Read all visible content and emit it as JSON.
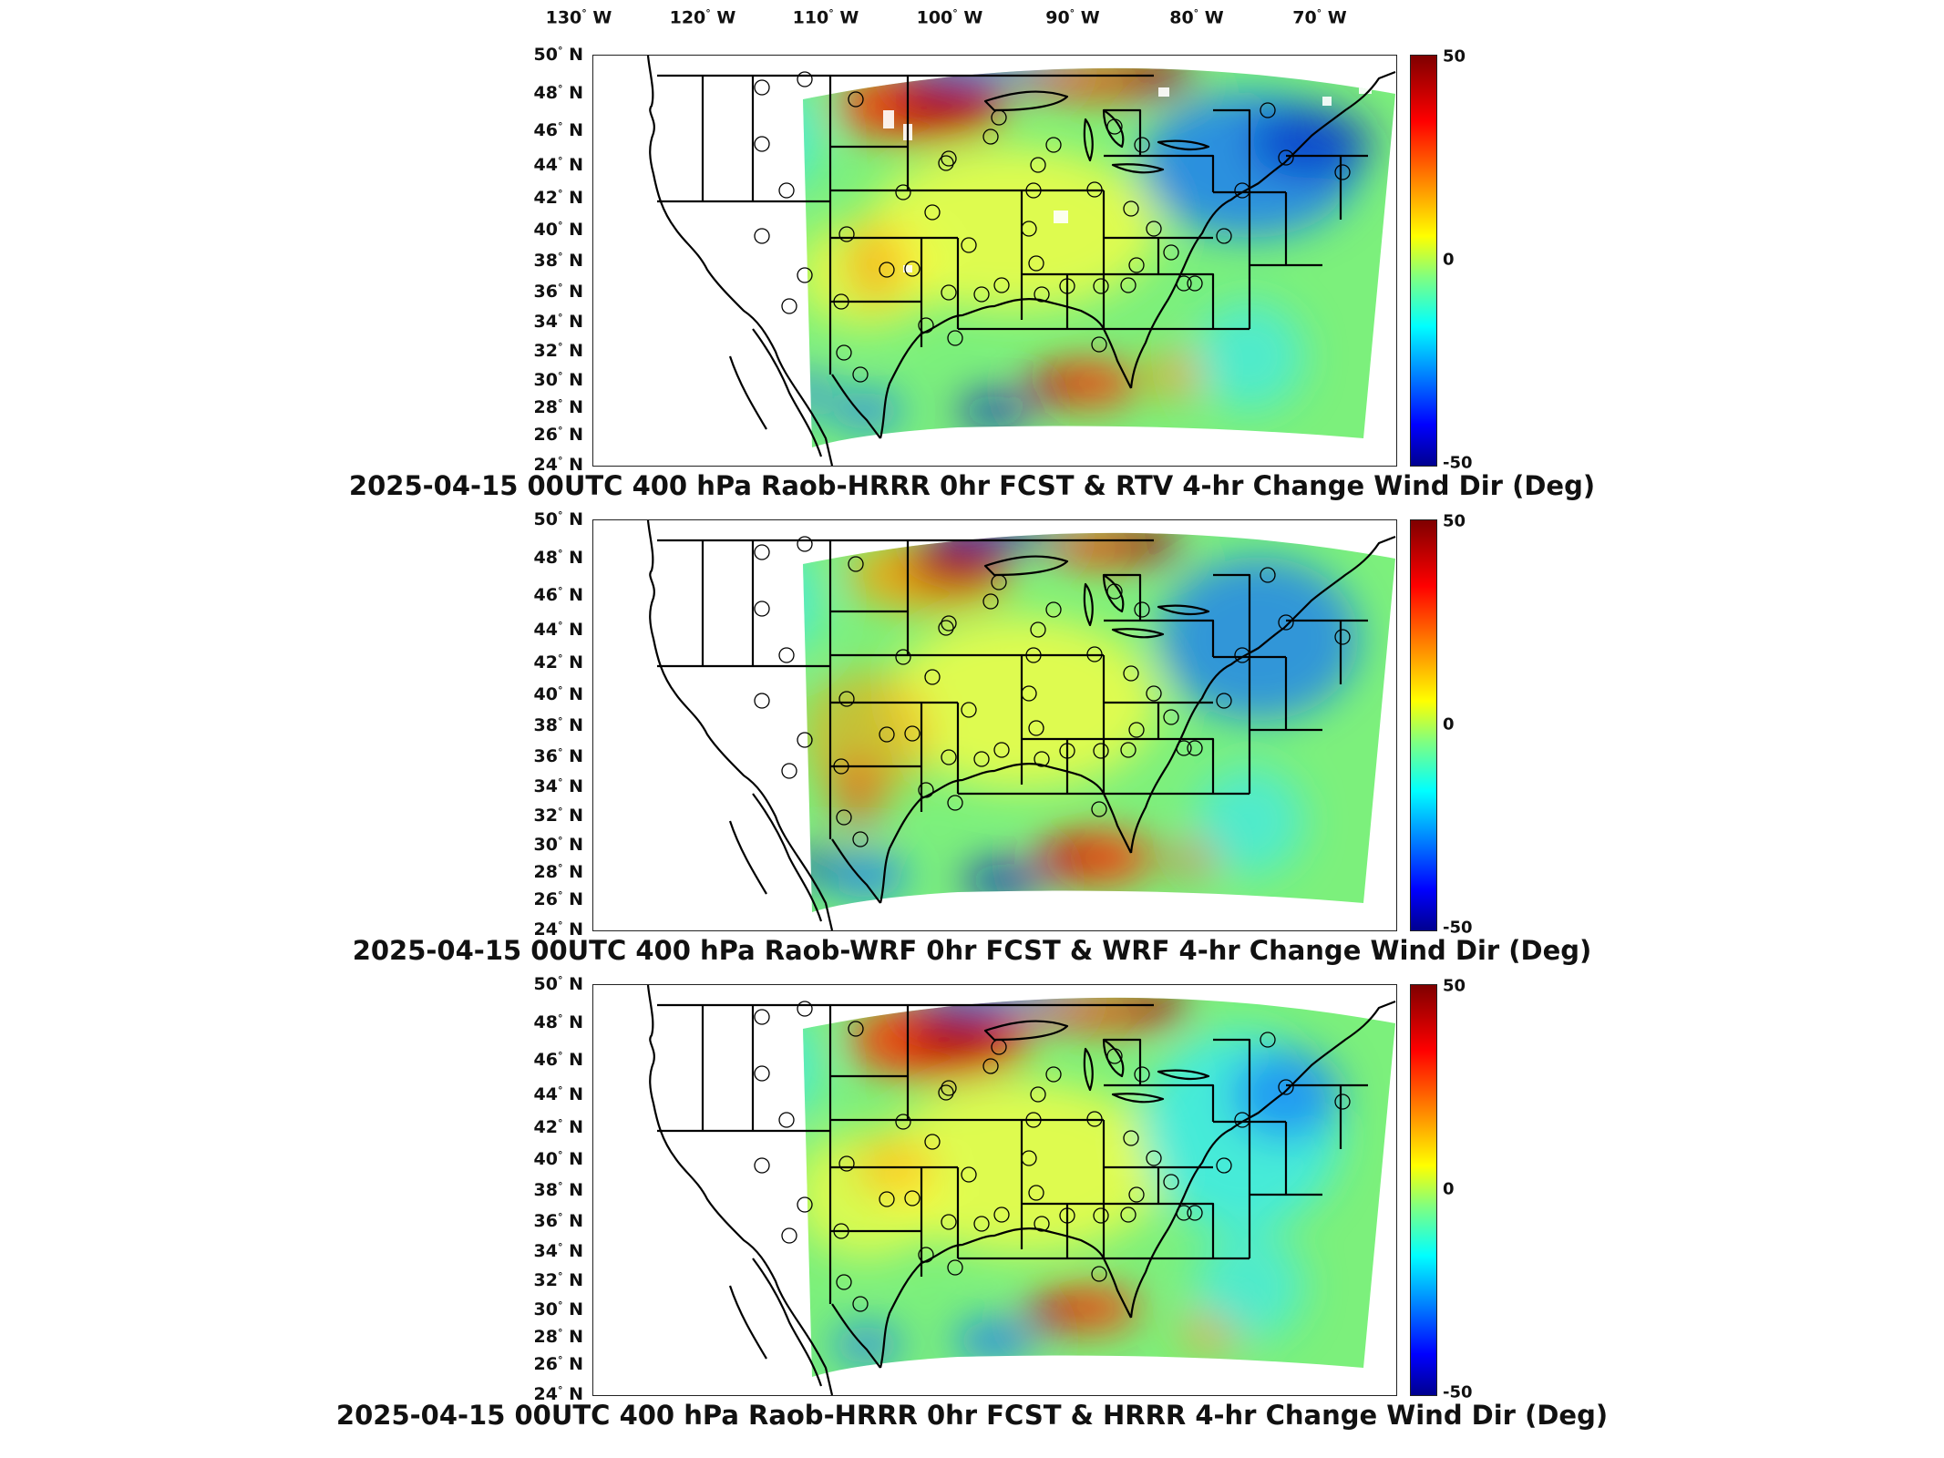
{
  "lon_labels": [
    {
      "deg": "130",
      "hem": "W"
    },
    {
      "deg": "120",
      "hem": "W"
    },
    {
      "deg": "110",
      "hem": "W"
    },
    {
      "deg": "100",
      "hem": "W"
    },
    {
      "deg": "90",
      "hem": "W"
    },
    {
      "deg": "80",
      "hem": "W"
    },
    {
      "deg": "70",
      "hem": "W"
    }
  ],
  "lat_labels": [
    {
      "deg": "50",
      "hem": "N"
    },
    {
      "deg": "48",
      "hem": "N"
    },
    {
      "deg": "46",
      "hem": "N"
    },
    {
      "deg": "44",
      "hem": "N"
    },
    {
      "deg": "42",
      "hem": "N"
    },
    {
      "deg": "40",
      "hem": "N"
    },
    {
      "deg": "38",
      "hem": "N"
    },
    {
      "deg": "36",
      "hem": "N"
    },
    {
      "deg": "34",
      "hem": "N"
    },
    {
      "deg": "32",
      "hem": "N"
    },
    {
      "deg": "30",
      "hem": "N"
    },
    {
      "deg": "28",
      "hem": "N"
    },
    {
      "deg": "26",
      "hem": "N"
    },
    {
      "deg": "24",
      "hem": "N"
    }
  ],
  "colors": {
    "hot": "#a00000",
    "red": "#ff3000",
    "orange": "#ff9a00",
    "yellow": "#ffff40",
    "green": "#7cf07c",
    "cyan": "#30e8ff",
    "blue": "#1070ff",
    "navy": "#0010c0"
  },
  "chart_data": [
    {
      "type": "heatmap",
      "title": "2025-04-15 00UTC 400 hPa Raob-HRRR 0hr FCST & RTV 4-hr Change Wind Dir (Deg)",
      "colorbar": {
        "min": -50,
        "mid": 0,
        "max": 50,
        "ticks": [
          "50",
          "0",
          "-50"
        ]
      },
      "xrange": [
        "130 W",
        "70 W"
      ],
      "yrange": [
        "24 N",
        "50 N"
      ]
    },
    {
      "type": "heatmap",
      "title": "2025-04-15 00UTC 400 hPa Raob-WRF 0hr FCST & WRF 4-hr Change Wind Dir (Deg)",
      "colorbar": {
        "min": -50,
        "mid": 0,
        "max": 50,
        "ticks": [
          "50",
          "0",
          "-50"
        ]
      },
      "xrange": [
        "130 W",
        "70 W"
      ],
      "yrange": [
        "24 N",
        "50 N"
      ]
    },
    {
      "type": "heatmap",
      "title": "2025-04-15 00UTC 400 hPa Raob-HRRR 0hr FCST & HRRR 4-hr Change Wind Dir (Deg)",
      "colorbar": {
        "min": -50,
        "mid": 0,
        "max": 50,
        "ticks": [
          "50",
          "0",
          "-50"
        ]
      },
      "xrange": [
        "130 W",
        "70 W"
      ],
      "yrange": [
        "24 N",
        "50 N"
      ]
    }
  ]
}
